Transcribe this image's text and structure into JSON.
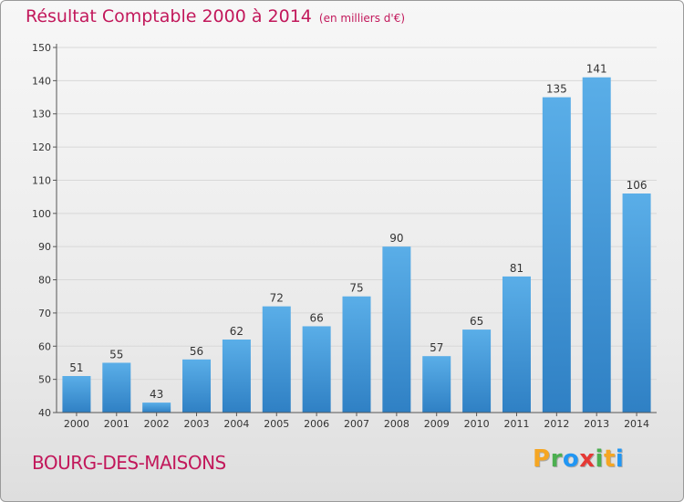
{
  "title": "Résultat Comptable 2000 à 2014",
  "unit": "(en milliers d'€)",
  "commune": "BOURG-DES-MAISONS",
  "brand": {
    "letters": [
      "P",
      "r",
      "o",
      "x",
      "i",
      "t",
      "i"
    ],
    "colors": [
      "#f5a623",
      "#4caf50",
      "#2196f3",
      "#e53935",
      "#4caf50",
      "#f5a623",
      "#2196f3"
    ]
  },
  "colors": {
    "title": "#c2185b",
    "bar_top": "#5aaee8",
    "bar_bottom": "#2f80c4",
    "grid": "#d8d8d8",
    "axis": "#555555"
  },
  "chart_data": {
    "type": "bar",
    "title": "Résultat Comptable 2000 à 2014",
    "subtitle": "(en milliers d'€)",
    "xlabel": "",
    "ylabel": "",
    "categories": [
      "2000",
      "2001",
      "2002",
      "2003",
      "2004",
      "2005",
      "2006",
      "2007",
      "2008",
      "2009",
      "2010",
      "2011",
      "2012",
      "2013",
      "2014"
    ],
    "values": [
      51,
      55,
      43,
      56,
      62,
      72,
      66,
      75,
      90,
      57,
      65,
      81,
      135,
      141,
      106
    ],
    "ylim": [
      40,
      150
    ],
    "yticks": [
      40,
      50,
      60,
      70,
      80,
      90,
      100,
      110,
      120,
      130,
      140,
      150
    ],
    "grid": true,
    "legend": "none"
  }
}
